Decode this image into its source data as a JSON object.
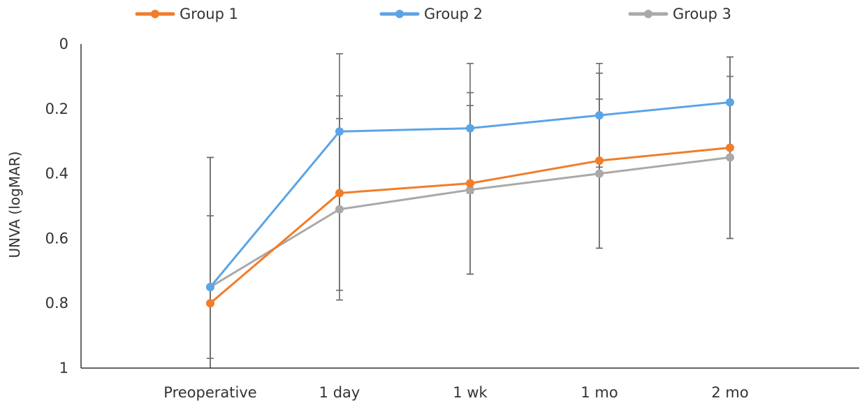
{
  "chart_data": {
    "type": "line",
    "title": "",
    "xlabel": "",
    "ylabel": "UNVA (logMAR)",
    "categories": [
      "Preoperative",
      "1 day",
      "1 wk",
      "1 mo",
      "2 mo"
    ],
    "ylim": [
      0,
      1
    ],
    "y_inverted": true,
    "y_ticks": [
      0,
      0.2,
      0.4,
      0.6,
      0.8,
      1
    ],
    "y_tick_labels": [
      "0",
      "0.2",
      "0.4",
      "0.6",
      "0.8",
      "1"
    ],
    "grid": false,
    "legend_position": "top",
    "series": [
      {
        "name": "Group 1",
        "color": "#F07D2A",
        "values": [
          0.8,
          0.46,
          0.43,
          0.36,
          0.32
        ],
        "error": [
          0.45,
          0.3,
          0.28,
          0.27,
          0.28
        ]
      },
      {
        "name": "Group 2",
        "color": "#5BA4E6",
        "values": [
          0.75,
          0.27,
          0.26,
          0.22,
          0.18
        ],
        "error": [
          0.4,
          0.24,
          0.2,
          0.16,
          0.14
        ]
      },
      {
        "name": "Group 3",
        "color": "#A9A9A9",
        "values": [
          0.75,
          0.51,
          0.45,
          0.4,
          0.35
        ],
        "error": [
          0.22,
          0.28,
          0.26,
          0.23,
          0.25
        ]
      }
    ]
  }
}
